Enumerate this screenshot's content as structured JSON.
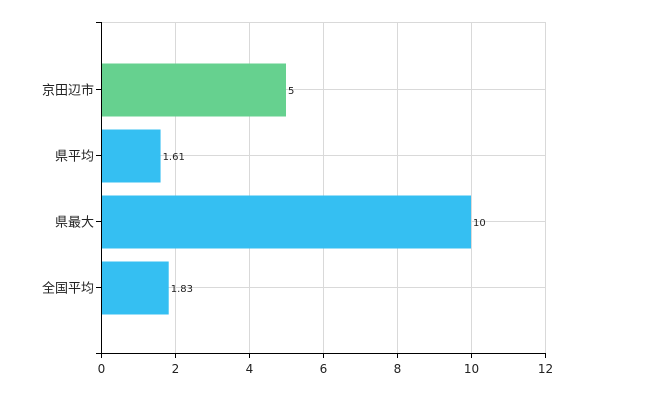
{
  "chart_data": {
    "type": "bar",
    "orientation": "horizontal",
    "categories": [
      "京田辺市",
      "県平均",
      "県最大",
      "全国平均"
    ],
    "values": [
      5,
      1.61,
      10,
      1.83
    ],
    "data_labels": [
      "5",
      "1.61",
      "10",
      "1.83"
    ],
    "bar_colors": [
      "#66d18f",
      "#35bff2",
      "#35bff2",
      "#35bff2"
    ],
    "xlim": [
      0,
      12
    ],
    "xticks": [
      0,
      2,
      4,
      6,
      8,
      10,
      12
    ],
    "xtick_labels": [
      "0",
      "2",
      "4",
      "6",
      "8",
      "10",
      "12"
    ],
    "grid": true,
    "legend": false
  }
}
